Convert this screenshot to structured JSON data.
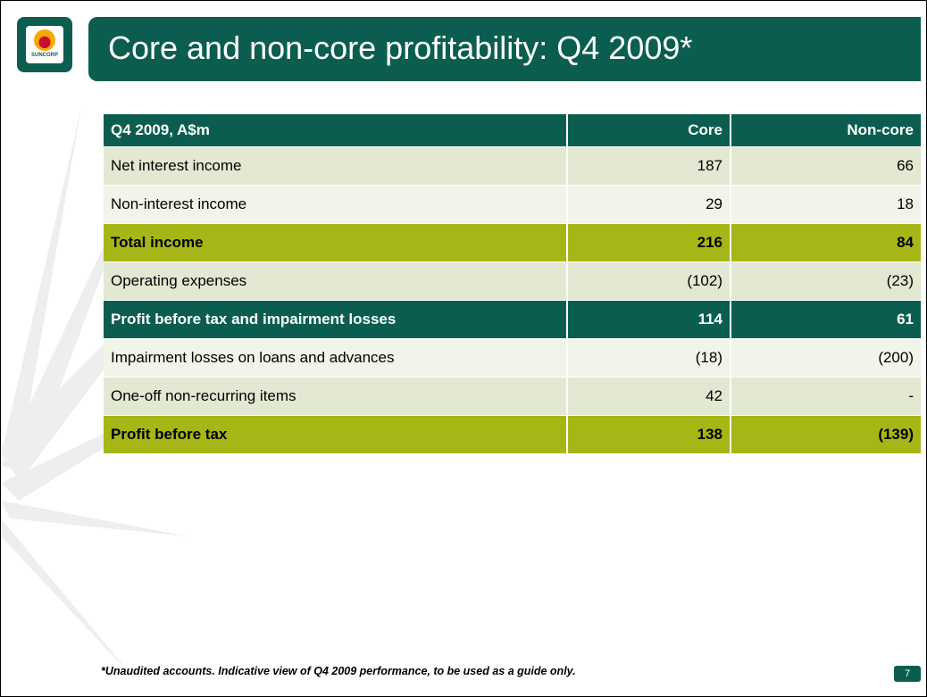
{
  "logo": {
    "text": "SUNCORP"
  },
  "header": {
    "title": "Core and non-core profitability: Q4 2009*"
  },
  "table": {
    "columns": [
      "Q4 2009, A$m",
      "Core",
      "Non-core"
    ],
    "rows": [
      [
        "Net interest income",
        "187",
        "66"
      ],
      [
        "Non-interest income",
        "29",
        "18"
      ],
      [
        "Total income",
        "216",
        "84"
      ],
      [
        "Operating expenses",
        "(102)",
        "(23)"
      ],
      [
        "Profit before tax and impairment losses",
        "114",
        "61"
      ],
      [
        "Impairment losses on loans and advances",
        "(18)",
        "(200)"
      ],
      [
        "One-off non-recurring items",
        "42",
        "-"
      ],
      [
        "Profit before tax",
        "138",
        "(139)"
      ]
    ]
  },
  "footnote": "*Unaudited accounts.  Indicative view of Q4 2009 performance, to be used as a guide only.",
  "page_number": "7"
}
